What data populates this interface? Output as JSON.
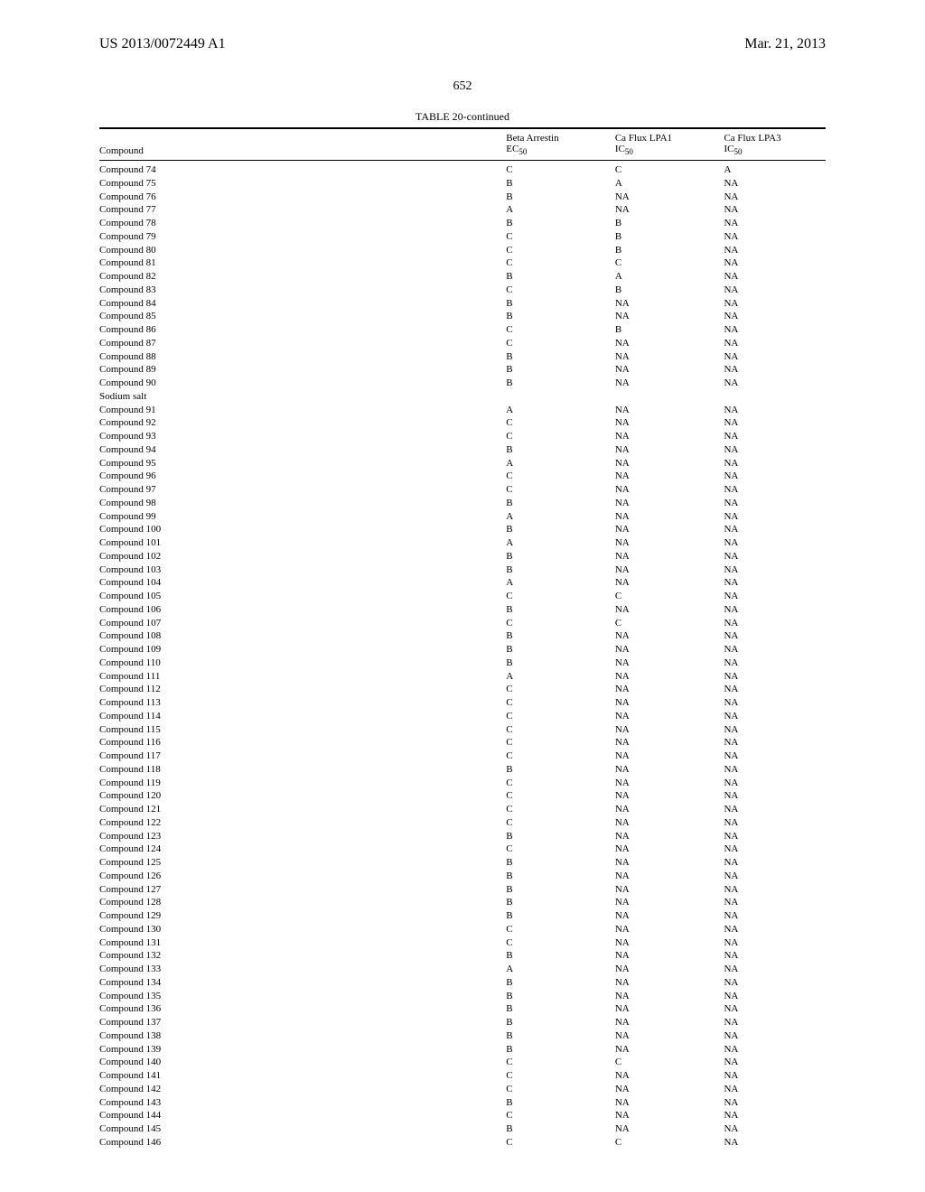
{
  "header": {
    "left": "US 2013/0072449 A1",
    "right": "Mar. 21, 2013"
  },
  "page_number": "652",
  "table": {
    "title": "TABLE 20-continued",
    "columns": {
      "compound": "Compound",
      "beta_arrestin_top": "Beta Arrestin",
      "beta_arrestin_bot_prefix": "EC",
      "beta_arrestin_bot_sub": "50",
      "lpa1_top": "Ca Flux LPA1",
      "lpa1_bot_prefix": "IC",
      "lpa1_bot_sub": "50",
      "lpa3_top": "Ca Flux LPA3",
      "lpa3_bot_prefix": "IC",
      "lpa3_bot_sub": "50"
    },
    "rows": [
      {
        "compound": "Compound 74",
        "beta": "C",
        "lpa1": "C",
        "lpa3": "A"
      },
      {
        "compound": "Compound 75",
        "beta": "B",
        "lpa1": "A",
        "lpa3": "NA"
      },
      {
        "compound": "Compound 76",
        "beta": "B",
        "lpa1": "NA",
        "lpa3": "NA"
      },
      {
        "compound": "Compound 77",
        "beta": "A",
        "lpa1": "NA",
        "lpa3": "NA"
      },
      {
        "compound": "Compound 78",
        "beta": "B",
        "lpa1": "B",
        "lpa3": "NA"
      },
      {
        "compound": "Compound 79",
        "beta": "C",
        "lpa1": "B",
        "lpa3": "NA"
      },
      {
        "compound": "Compound 80",
        "beta": "C",
        "lpa1": "B",
        "lpa3": "NA"
      },
      {
        "compound": "Compound 81",
        "beta": "C",
        "lpa1": "C",
        "lpa3": "NA"
      },
      {
        "compound": "Compound 82",
        "beta": "B",
        "lpa1": "A",
        "lpa3": "NA"
      },
      {
        "compound": "Compound 83",
        "beta": "C",
        "lpa1": "B",
        "lpa3": "NA"
      },
      {
        "compound": "Compound 84",
        "beta": "B",
        "lpa1": "NA",
        "lpa3": "NA"
      },
      {
        "compound": "Compound 85",
        "beta": "B",
        "lpa1": "NA",
        "lpa3": "NA"
      },
      {
        "compound": "Compound 86",
        "beta": "C",
        "lpa1": "B",
        "lpa3": "NA"
      },
      {
        "compound": "Compound 87",
        "beta": "C",
        "lpa1": "NA",
        "lpa3": "NA"
      },
      {
        "compound": "Compound 88",
        "beta": "B",
        "lpa1": "NA",
        "lpa3": "NA"
      },
      {
        "compound": "Compound 89",
        "beta": "B",
        "lpa1": "NA",
        "lpa3": "NA"
      },
      {
        "compound": "Compound 90",
        "beta": "B",
        "lpa1": "NA",
        "lpa3": "NA"
      },
      {
        "compound": "Sodium salt",
        "beta": "",
        "lpa1": "",
        "lpa3": ""
      },
      {
        "compound": "Compound 91",
        "beta": "A",
        "lpa1": "NA",
        "lpa3": "NA"
      },
      {
        "compound": "Compound 92",
        "beta": "C",
        "lpa1": "NA",
        "lpa3": "NA"
      },
      {
        "compound": "Compound 93",
        "beta": "C",
        "lpa1": "NA",
        "lpa3": "NA"
      },
      {
        "compound": "Compound 94",
        "beta": "B",
        "lpa1": "NA",
        "lpa3": "NA"
      },
      {
        "compound": "Compound 95",
        "beta": "A",
        "lpa1": "NA",
        "lpa3": "NA"
      },
      {
        "compound": "Compound 96",
        "beta": "C",
        "lpa1": "NA",
        "lpa3": "NA"
      },
      {
        "compound": "Compound 97",
        "beta": "C",
        "lpa1": "NA",
        "lpa3": "NA"
      },
      {
        "compound": "Compound 98",
        "beta": "B",
        "lpa1": "NA",
        "lpa3": "NA"
      },
      {
        "compound": "Compound 99",
        "beta": "A",
        "lpa1": "NA",
        "lpa3": "NA"
      },
      {
        "compound": "Compound 100",
        "beta": "B",
        "lpa1": "NA",
        "lpa3": "NA"
      },
      {
        "compound": "Compound 101",
        "beta": "A",
        "lpa1": "NA",
        "lpa3": "NA"
      },
      {
        "compound": "Compound 102",
        "beta": "B",
        "lpa1": "NA",
        "lpa3": "NA"
      },
      {
        "compound": "Compound 103",
        "beta": "B",
        "lpa1": "NA",
        "lpa3": "NA"
      },
      {
        "compound": "Compound 104",
        "beta": "A",
        "lpa1": "NA",
        "lpa3": "NA"
      },
      {
        "compound": "Compound 105",
        "beta": "C",
        "lpa1": "C",
        "lpa3": "NA"
      },
      {
        "compound": "Compound 106",
        "beta": "B",
        "lpa1": "NA",
        "lpa3": "NA"
      },
      {
        "compound": "Compound 107",
        "beta": "C",
        "lpa1": "C",
        "lpa3": "NA"
      },
      {
        "compound": "Compound 108",
        "beta": "B",
        "lpa1": "NA",
        "lpa3": "NA"
      },
      {
        "compound": "Compound 109",
        "beta": "B",
        "lpa1": "NA",
        "lpa3": "NA"
      },
      {
        "compound": "Compound 110",
        "beta": "B",
        "lpa1": "NA",
        "lpa3": "NA"
      },
      {
        "compound": "Compound 111",
        "beta": "A",
        "lpa1": "NA",
        "lpa3": "NA"
      },
      {
        "compound": "Compound 112",
        "beta": "C",
        "lpa1": "NA",
        "lpa3": "NA"
      },
      {
        "compound": "Compound 113",
        "beta": "C",
        "lpa1": "NA",
        "lpa3": "NA"
      },
      {
        "compound": "Compound 114",
        "beta": "C",
        "lpa1": "NA",
        "lpa3": "NA"
      },
      {
        "compound": "Compound 115",
        "beta": "C",
        "lpa1": "NA",
        "lpa3": "NA"
      },
      {
        "compound": "Compound 116",
        "beta": "C",
        "lpa1": "NA",
        "lpa3": "NA"
      },
      {
        "compound": "Compound 117",
        "beta": "C",
        "lpa1": "NA",
        "lpa3": "NA"
      },
      {
        "compound": "Compound 118",
        "beta": "B",
        "lpa1": "NA",
        "lpa3": "NA"
      },
      {
        "compound": "Compound 119",
        "beta": "C",
        "lpa1": "NA",
        "lpa3": "NA"
      },
      {
        "compound": "Compound 120",
        "beta": "C",
        "lpa1": "NA",
        "lpa3": "NA"
      },
      {
        "compound": "Compound 121",
        "beta": "C",
        "lpa1": "NA",
        "lpa3": "NA"
      },
      {
        "compound": "Compound 122",
        "beta": "C",
        "lpa1": "NA",
        "lpa3": "NA"
      },
      {
        "compound": "Compound 123",
        "beta": "B",
        "lpa1": "NA",
        "lpa3": "NA"
      },
      {
        "compound": "Compound 124",
        "beta": "C",
        "lpa1": "NA",
        "lpa3": "NA"
      },
      {
        "compound": "Compound 125",
        "beta": "B",
        "lpa1": "NA",
        "lpa3": "NA"
      },
      {
        "compound": "Compound 126",
        "beta": "B",
        "lpa1": "NA",
        "lpa3": "NA"
      },
      {
        "compound": "Compound 127",
        "beta": "B",
        "lpa1": "NA",
        "lpa3": "NA"
      },
      {
        "compound": "Compound 128",
        "beta": "B",
        "lpa1": "NA",
        "lpa3": "NA"
      },
      {
        "compound": "Compound 129",
        "beta": "B",
        "lpa1": "NA",
        "lpa3": "NA"
      },
      {
        "compound": "Compound 130",
        "beta": "C",
        "lpa1": "NA",
        "lpa3": "NA"
      },
      {
        "compound": "Compound 131",
        "beta": "C",
        "lpa1": "NA",
        "lpa3": "NA"
      },
      {
        "compound": "Compound 132",
        "beta": "B",
        "lpa1": "NA",
        "lpa3": "NA"
      },
      {
        "compound": "Compound 133",
        "beta": "A",
        "lpa1": "NA",
        "lpa3": "NA"
      },
      {
        "compound": "Compound 134",
        "beta": "B",
        "lpa1": "NA",
        "lpa3": "NA"
      },
      {
        "compound": "Compound 135",
        "beta": "B",
        "lpa1": "NA",
        "lpa3": "NA"
      },
      {
        "compound": "Compound 136",
        "beta": "B",
        "lpa1": "NA",
        "lpa3": "NA"
      },
      {
        "compound": "Compound 137",
        "beta": "B",
        "lpa1": "NA",
        "lpa3": "NA"
      },
      {
        "compound": "Compound 138",
        "beta": "B",
        "lpa1": "NA",
        "lpa3": "NA"
      },
      {
        "compound": "Compound 139",
        "beta": "B",
        "lpa1": "NA",
        "lpa3": "NA"
      },
      {
        "compound": "Compound 140",
        "beta": "C",
        "lpa1": "C",
        "lpa3": "NA"
      },
      {
        "compound": "Compound 141",
        "beta": "C",
        "lpa1": "NA",
        "lpa3": "NA"
      },
      {
        "compound": "Compound 142",
        "beta": "C",
        "lpa1": "NA",
        "lpa3": "NA"
      },
      {
        "compound": "Compound 143",
        "beta": "B",
        "lpa1": "NA",
        "lpa3": "NA"
      },
      {
        "compound": "Compound 144",
        "beta": "C",
        "lpa1": "NA",
        "lpa3": "NA"
      },
      {
        "compound": "Compound 145",
        "beta": "B",
        "lpa1": "NA",
        "lpa3": "NA"
      },
      {
        "compound": "Compound 146",
        "beta": "C",
        "lpa1": "C",
        "lpa3": "NA"
      }
    ]
  }
}
